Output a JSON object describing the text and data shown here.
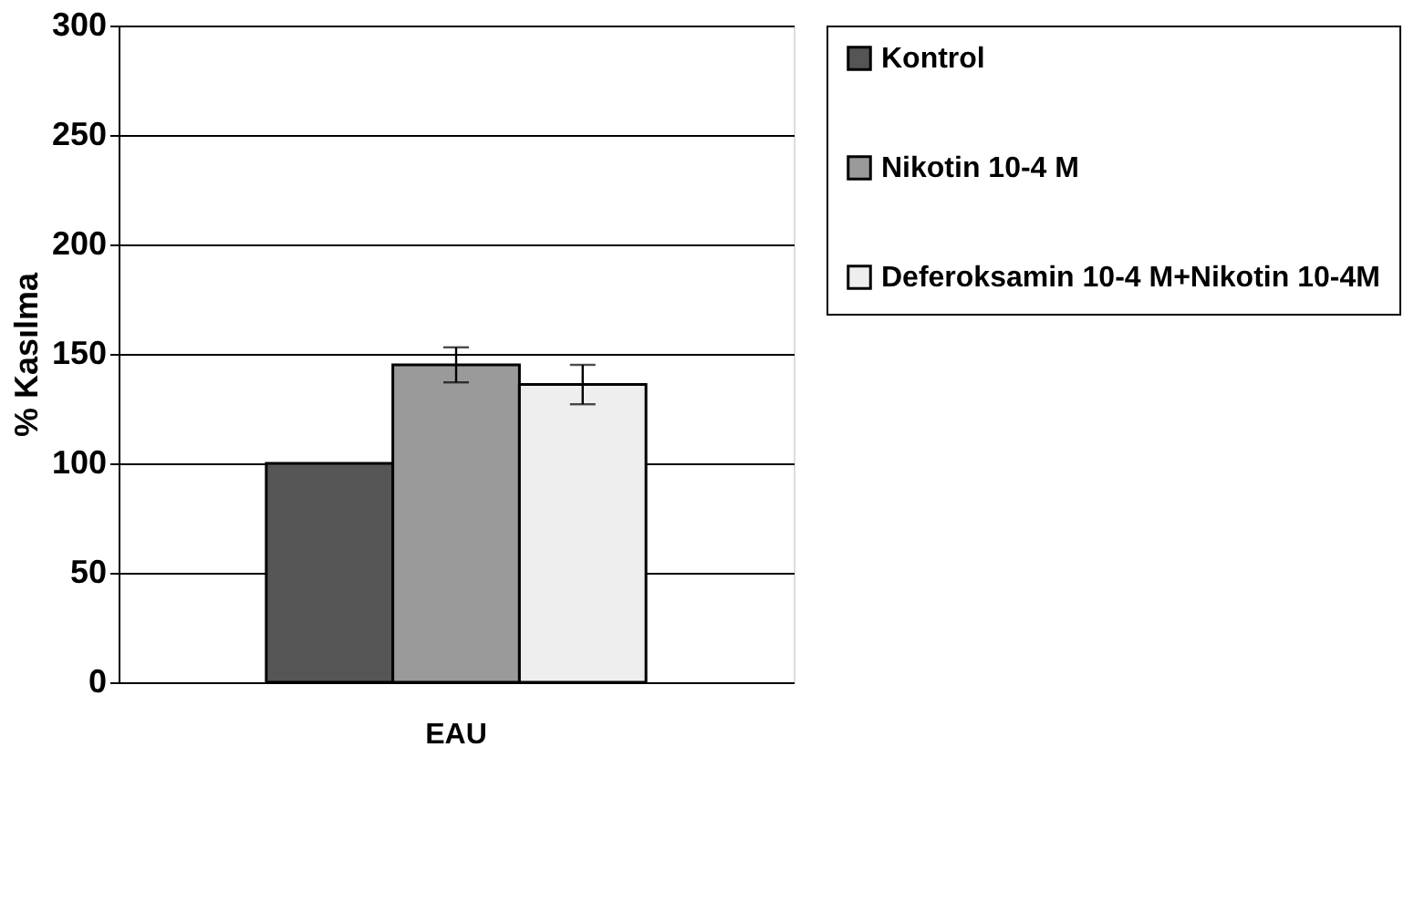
{
  "chart_data": {
    "type": "bar",
    "ylabel": "% Kasılma",
    "categories": [
      "EAU"
    ],
    "series": [
      {
        "name": "Kontrol",
        "color": "#555555",
        "values": [
          100
        ]
      },
      {
        "name": "Nikotin 10-4 M",
        "color": "#9a9a9a",
        "values": [
          145
        ],
        "errors": [
          8
        ]
      },
      {
        "name": "Deferoksamin 10-4 M+Nikotin 10-4M",
        "color": "#eeeeee",
        "values": [
          136
        ],
        "errors": [
          9
        ]
      }
    ],
    "ylim": [
      0,
      300
    ],
    "yticks": [
      0,
      50,
      100,
      150,
      200,
      250,
      300
    ],
    "grid": "y",
    "legend": "right"
  }
}
